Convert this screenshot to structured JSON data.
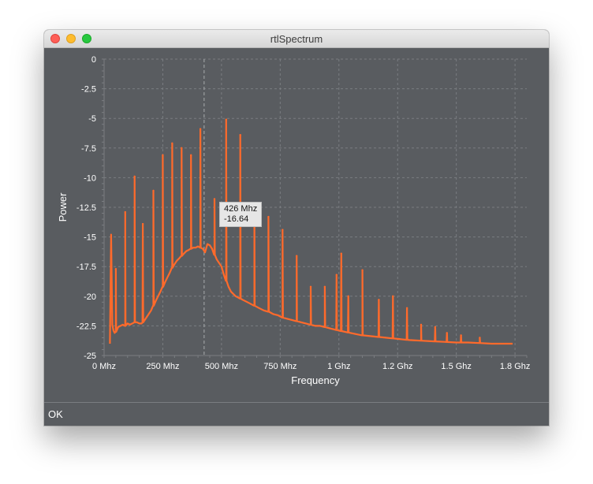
{
  "window": {
    "title": "rtlSpectrum"
  },
  "status": {
    "text": "OK"
  },
  "tooltip": {
    "freq": "426 Mhz",
    "power": "-16.64"
  },
  "colors": {
    "series": "#ff6a2b",
    "plot_bg": "#595c60",
    "grid": "#7a7d81",
    "text": "#ffffff",
    "cursor": "#a9abad"
  },
  "chart_data": {
    "type": "line",
    "title": "",
    "xlabel": "Frequency",
    "ylabel": "Power",
    "xlim": [
      0,
      1800
    ],
    "ylim": [
      -25,
      0
    ],
    "grid": true,
    "x_ticks": [
      {
        "value": 0,
        "label": "0 Mhz"
      },
      {
        "value": 250,
        "label": "250 Mhz"
      },
      {
        "value": 500,
        "label": "500 Mhz"
      },
      {
        "value": 750,
        "label": "750 Mhz"
      },
      {
        "value": 1000,
        "label": "1 Ghz"
      },
      {
        "value": 1250,
        "label": "1.2 Ghz"
      },
      {
        "value": 1500,
        "label": "1.5 Ghz"
      },
      {
        "value": 1750,
        "label": "1.8 Ghz"
      }
    ],
    "y_ticks": [
      {
        "value": 0,
        "label": "0"
      },
      {
        "value": -2.5,
        "label": "-2.5"
      },
      {
        "value": -5,
        "label": "-5"
      },
      {
        "value": -7.5,
        "label": "-7.5"
      },
      {
        "value": -10,
        "label": "-10"
      },
      {
        "value": -12.5,
        "label": "-12.5"
      },
      {
        "value": -15,
        "label": "-15"
      },
      {
        "value": -17.5,
        "label": "-17.5"
      },
      {
        "value": -20,
        "label": "-20"
      },
      {
        "value": -22.5,
        "label": "-22.5"
      },
      {
        "value": -25,
        "label": "-25"
      }
    ],
    "cursor_x": 426,
    "series": [
      {
        "x": [
          25,
          30,
          35,
          40,
          45,
          50,
          60,
          70,
          80,
          90,
          100,
          110,
          120,
          130,
          140,
          150,
          160,
          170,
          180,
          190,
          200,
          210,
          220,
          230,
          240,
          250,
          260,
          270,
          280,
          290,
          300,
          310,
          320,
          330,
          340,
          350,
          360,
          370,
          380,
          390,
          400,
          410,
          420,
          430,
          440,
          450,
          460,
          470,
          480,
          490,
          500,
          510,
          520,
          530,
          540,
          550,
          560,
          570,
          580,
          590,
          600,
          620,
          640,
          660,
          680,
          700,
          720,
          740,
          760,
          780,
          800,
          820,
          840,
          860,
          880,
          900,
          920,
          940,
          960,
          980,
          1000,
          1050,
          1100,
          1150,
          1200,
          1250,
          1300,
          1350,
          1400,
          1450,
          1500,
          1550,
          1600,
          1650,
          1700,
          1740
        ],
        "y": [
          -24.0,
          -14.8,
          -22.4,
          -22.9,
          -23.1,
          -23.0,
          -22.6,
          -22.5,
          -22.4,
          -22.5,
          -22.3,
          -22.4,
          -22.3,
          -22.2,
          -22.2,
          -22.3,
          -22.3,
          -22.1,
          -21.8,
          -21.5,
          -21.2,
          -20.8,
          -20.4,
          -20.0,
          -19.6,
          -19.2,
          -18.8,
          -18.4,
          -18.0,
          -17.6,
          -17.3,
          -17.0,
          -16.8,
          -16.6,
          -16.4,
          -16.2,
          -16.1,
          -16.0,
          -15.9,
          -15.9,
          -15.8,
          -15.9,
          -16.0,
          -16.3,
          -15.6,
          -15.7,
          -16.0,
          -16.5,
          -16.9,
          -17.2,
          -17.5,
          -18.2,
          -18.7,
          -19.2,
          -19.6,
          -19.8,
          -20.0,
          -20.1,
          -20.2,
          -20.3,
          -20.4,
          -20.6,
          -20.8,
          -21.0,
          -21.2,
          -21.3,
          -21.5,
          -21.6,
          -21.8,
          -21.9,
          -22.0,
          -22.1,
          -22.2,
          -22.3,
          -22.4,
          -22.5,
          -22.5,
          -22.6,
          -22.7,
          -22.8,
          -22.9,
          -23.1,
          -23.3,
          -23.4,
          -23.5,
          -23.6,
          -23.7,
          -23.75,
          -23.8,
          -23.85,
          -23.9,
          -23.9,
          -23.95,
          -24.0,
          -24.0,
          -24.0
        ]
      }
    ],
    "spikes": [
      {
        "x": 50,
        "y": -17.7
      },
      {
        "x": 90,
        "y": -12.9
      },
      {
        "x": 130,
        "y": -9.9
      },
      {
        "x": 165,
        "y": -13.9
      },
      {
        "x": 210,
        "y": -11.1
      },
      {
        "x": 250,
        "y": -8.1
      },
      {
        "x": 290,
        "y": -7.1
      },
      {
        "x": 330,
        "y": -7.5
      },
      {
        "x": 370,
        "y": -8.1
      },
      {
        "x": 410,
        "y": -5.9
      },
      {
        "x": 470,
        "y": -11.8
      },
      {
        "x": 520,
        "y": -5.1
      },
      {
        "x": 580,
        "y": -6.4
      },
      {
        "x": 640,
        "y": -12.9
      },
      {
        "x": 700,
        "y": -13.3
      },
      {
        "x": 760,
        "y": -14.4
      },
      {
        "x": 820,
        "y": -16.6
      },
      {
        "x": 880,
        "y": -19.2
      },
      {
        "x": 940,
        "y": -19.2
      },
      {
        "x": 990,
        "y": -18.2
      },
      {
        "x": 1010,
        "y": -16.4
      },
      {
        "x": 1040,
        "y": -20.0
      },
      {
        "x": 1100,
        "y": -17.8
      },
      {
        "x": 1170,
        "y": -20.3
      },
      {
        "x": 1230,
        "y": -20.0
      },
      {
        "x": 1290,
        "y": -21.0
      },
      {
        "x": 1350,
        "y": -22.4
      },
      {
        "x": 1410,
        "y": -22.6
      },
      {
        "x": 1460,
        "y": -23.1
      },
      {
        "x": 1520,
        "y": -23.3
      },
      {
        "x": 1600,
        "y": -23.5
      }
    ]
  }
}
